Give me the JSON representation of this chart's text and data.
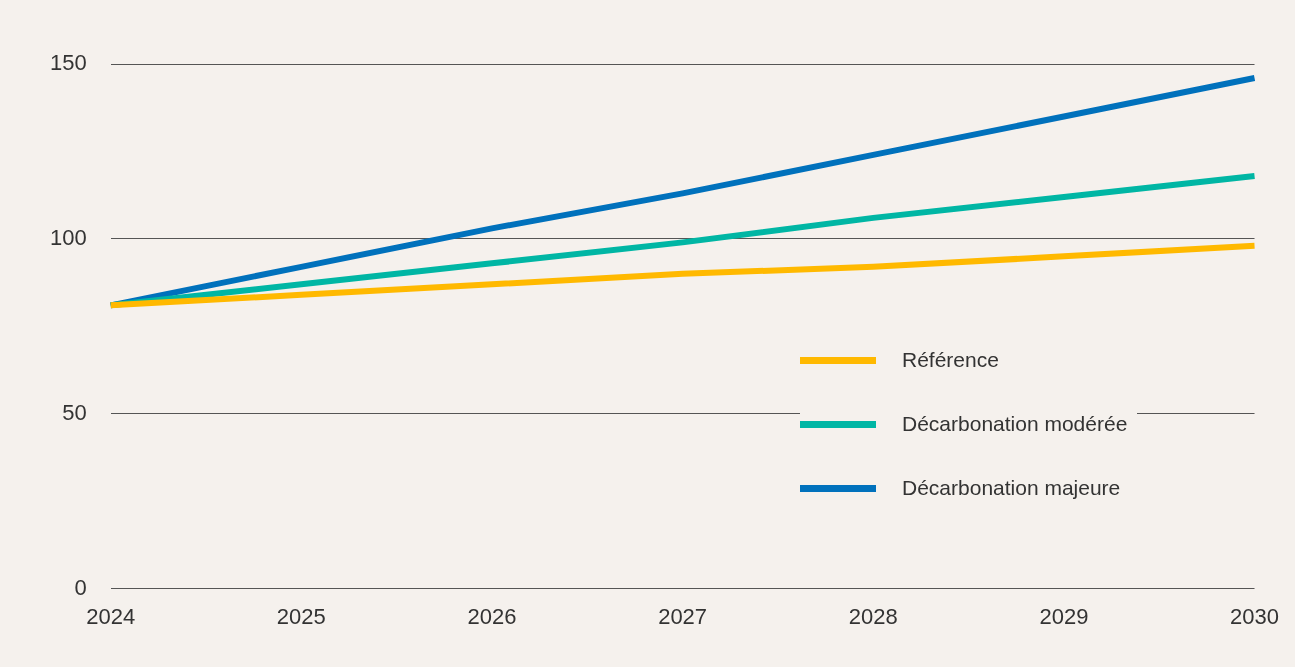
{
  "chart_data": {
    "type": "line",
    "categories": [
      "2024",
      "2025",
      "2026",
      "2027",
      "2028",
      "2029",
      "2030"
    ],
    "series": [
      {
        "name": "Référence",
        "color": "#ffb900",
        "values": [
          81,
          84,
          87,
          90,
          92,
          95,
          98
        ]
      },
      {
        "name": "Décarbonation modérée",
        "color": "#00b6a4",
        "values": [
          81,
          87,
          93,
          99,
          106,
          112,
          118
        ]
      },
      {
        "name": "Décarbonation majeure",
        "color": "#0071bc",
        "values": [
          81,
          92,
          103,
          113,
          124,
          135,
          146
        ]
      }
    ],
    "ylim": [
      0,
      150
    ],
    "yticks": [
      0,
      50,
      100,
      150
    ],
    "grid": "y",
    "legend": "right",
    "marker": "none",
    "line_style": "solid"
  }
}
